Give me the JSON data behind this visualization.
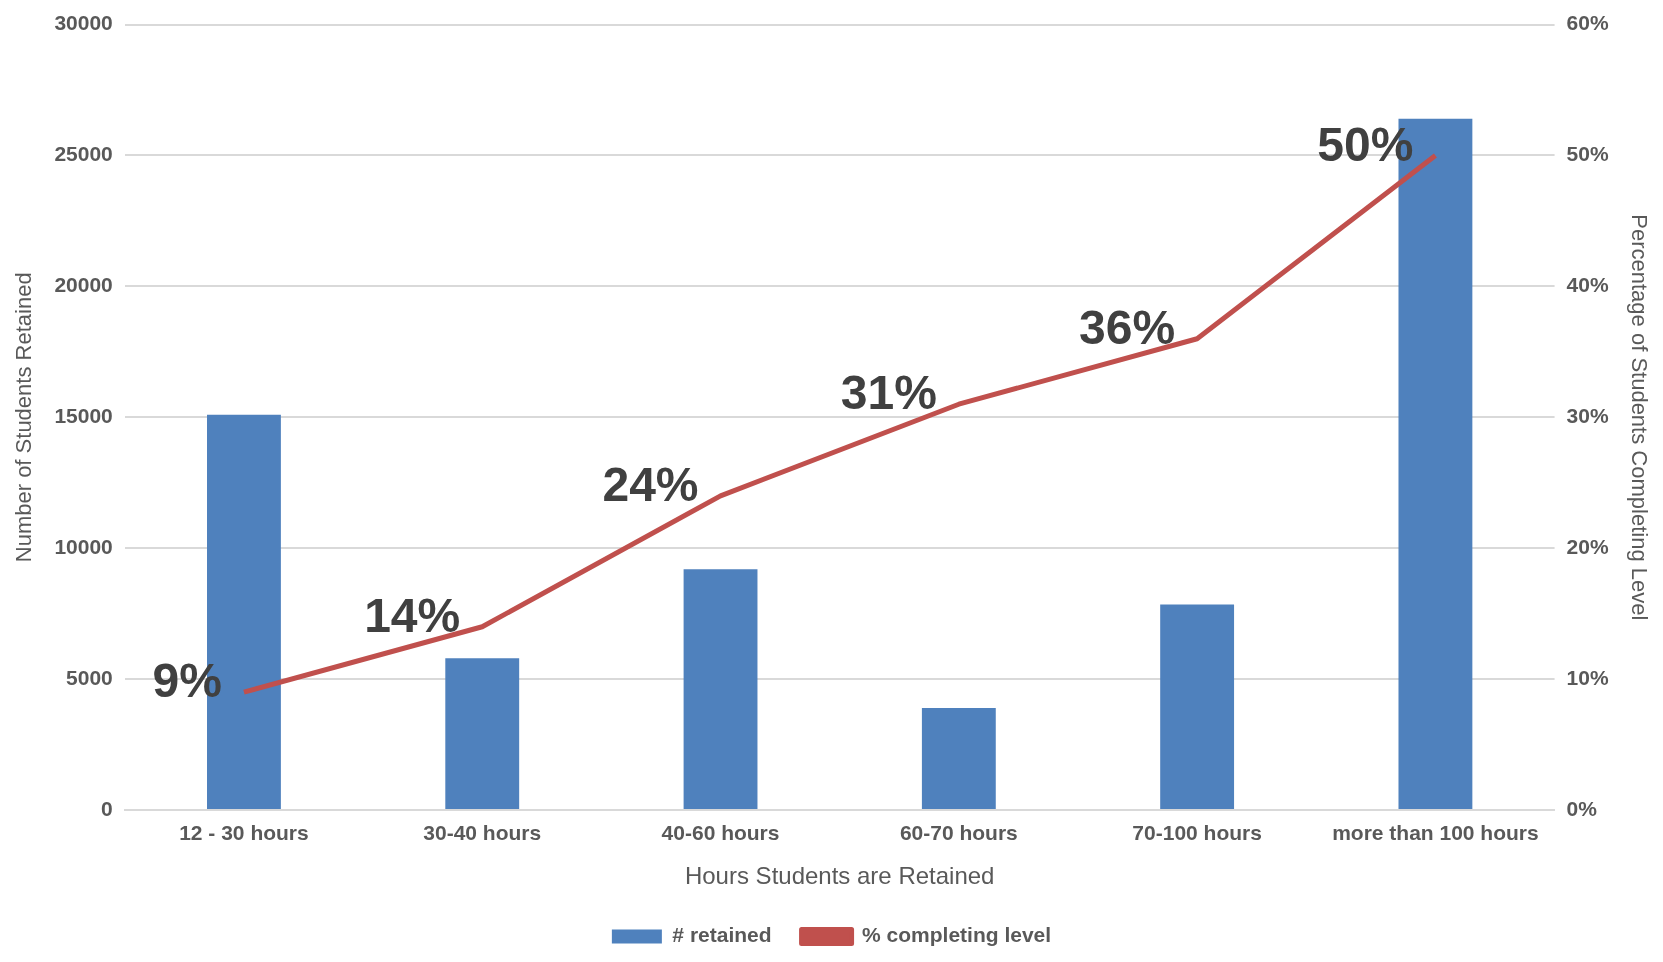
{
  "chart_data": {
    "type": "bar",
    "xlabel": "Hours Students are Retained",
    "ylabel": "Number of Students Retained",
    "y2label": "Percentage of Students Completing Level",
    "categories": [
      "12 - 30 hours",
      "30-40 hours",
      "40-60 hours",
      "60-70 hours",
      "70-100 hours",
      "more than 100 hours"
    ],
    "series": [
      {
        "name": "# retained",
        "color": "#4f81bd",
        "values": [
          15100,
          5800,
          9200,
          3900,
          7850,
          26400
        ]
      },
      {
        "name": "% completing level",
        "type": "line",
        "axis": "y2",
        "color": "#c0504d",
        "marker": "none",
        "values": [
          9,
          14,
          24,
          31,
          36,
          50
        ],
        "value_labels": [
          "9%",
          "14%",
          "24%",
          "31%",
          "36%",
          "50%"
        ]
      }
    ],
    "ylim": [
      0,
      30000
    ],
    "yticks": [
      0,
      5000,
      10000,
      15000,
      20000,
      25000,
      30000
    ],
    "y2lim": [
      0,
      60
    ],
    "y2ticks": [
      {
        "value": 0,
        "label": "0%"
      },
      {
        "value": 10,
        "label": "10%"
      },
      {
        "value": 20,
        "label": "20%"
      },
      {
        "value": 30,
        "label": "30%"
      },
      {
        "value": 40,
        "label": "40%"
      },
      {
        "value": 50,
        "label": "50%"
      },
      {
        "value": 60,
        "label": "60%"
      }
    ],
    "grid": "y",
    "legend": "bottom"
  }
}
